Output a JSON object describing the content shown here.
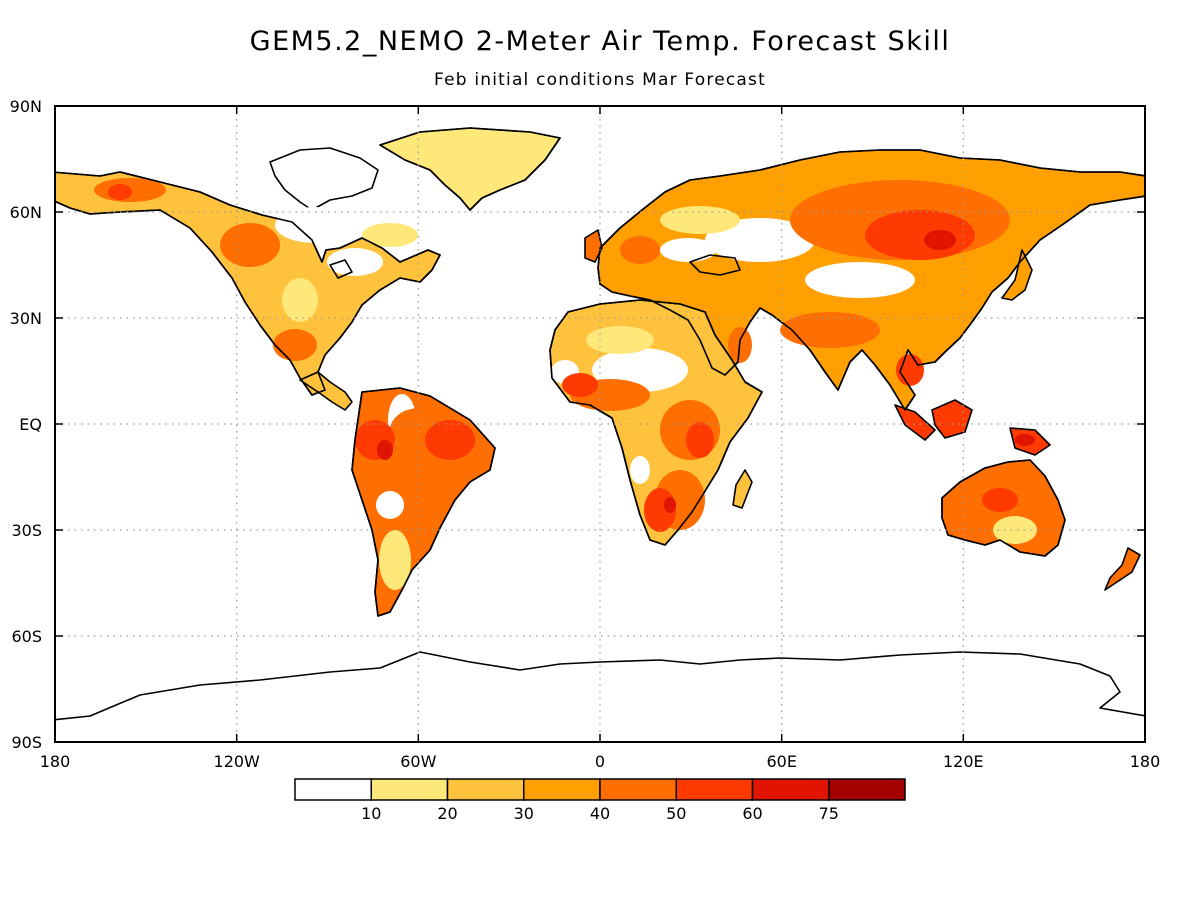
{
  "title": "GEM5.2_NEMO 2-Meter Air Temp. Forecast Skill",
  "subtitle": "Feb initial conditions  Mar Forecast",
  "axes": {
    "lat_labels": [
      "90N",
      "60N",
      "30N",
      "EQ",
      "30S",
      "60S",
      "90S"
    ],
    "lon_labels": [
      "180",
      "120W",
      "60W",
      "0",
      "60E",
      "120E",
      "180"
    ]
  },
  "legend": {
    "colors": [
      "#ffffff",
      "#ffe87a",
      "#ffc23c",
      "#ffa000",
      "#ff6e00",
      "#ff3a00",
      "#e01400",
      "#a50000"
    ],
    "labels": [
      "10",
      "20",
      "30",
      "40",
      "50",
      "60",
      "75"
    ]
  },
  "palette": {
    "land_base": "#ffc23c",
    "coast": "#000000",
    "grid": "#9a9a9a"
  }
}
